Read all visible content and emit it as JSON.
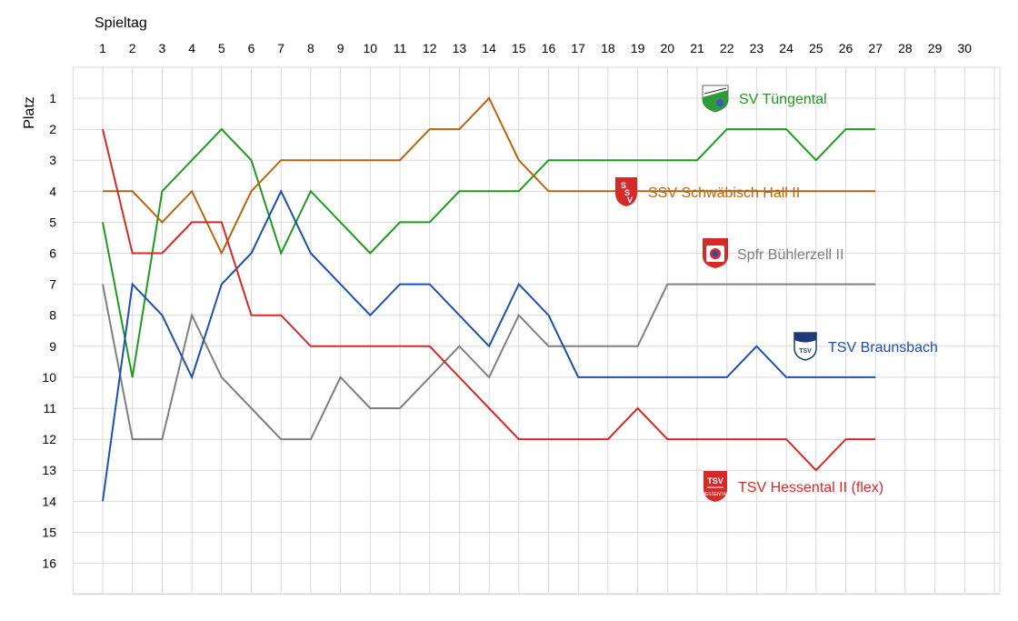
{
  "chart_data": {
    "type": "line",
    "xlabel": "Spieltag",
    "ylabel": "Platz",
    "x_ticks": [
      1,
      2,
      3,
      4,
      5,
      6,
      7,
      8,
      9,
      10,
      11,
      12,
      13,
      14,
      15,
      16,
      17,
      18,
      19,
      20,
      21,
      22,
      23,
      24,
      25,
      26,
      27,
      28,
      29,
      30
    ],
    "y_ticks": [
      1,
      2,
      3,
      4,
      5,
      6,
      7,
      8,
      9,
      10,
      11,
      12,
      13,
      14,
      15,
      16
    ],
    "xlim": [
      1,
      30
    ],
    "ylim": [
      16,
      1
    ],
    "y_inverted": true,
    "grid": true,
    "x_axis_position": "top",
    "series": [
      {
        "name": "SV Tüngental",
        "color": "#1f9a1f",
        "logo": "sv-tuengental-crest-icon",
        "values": [
          5,
          10,
          4,
          3,
          2,
          3,
          6,
          4,
          5,
          6,
          5,
          5,
          4,
          4,
          4,
          3,
          3,
          3,
          3,
          3,
          3,
          2,
          2,
          2,
          3,
          2,
          2
        ]
      },
      {
        "name": "SSV Schwäbisch Hall II",
        "color": "#b8650f",
        "logo": "ssv-schwaebisch-hall-crest-icon",
        "values": [
          4,
          4,
          5,
          4,
          6,
          4,
          3,
          3,
          3,
          3,
          3,
          2,
          2,
          1,
          3,
          4,
          4,
          4,
          4,
          4,
          4,
          4,
          4,
          4,
          4,
          4,
          4
        ]
      },
      {
        "name": "Spfr Bühlerzell II",
        "color": "#7f7f7f",
        "logo": "spfr-buehlerzell-crest-icon",
        "values": [
          7,
          12,
          12,
          8,
          10,
          11,
          12,
          12,
          10,
          11,
          11,
          10,
          9,
          10,
          8,
          9,
          9,
          9,
          9,
          7,
          7,
          7,
          7,
          7,
          7,
          7,
          7
        ]
      },
      {
        "name": "TSV Braunsbach",
        "color": "#1f4faf",
        "logo": "tsv-braunsbach-crest-icon",
        "values": [
          14,
          7,
          8,
          10,
          7,
          6,
          4,
          6,
          7,
          8,
          7,
          7,
          8,
          9,
          7,
          8,
          10,
          10,
          10,
          10,
          10,
          10,
          9,
          10,
          10,
          10,
          10
        ]
      },
      {
        "name": "TSV Hessental II (flex)",
        "color": "#d42a2a",
        "logo": "tsv-hessental-crest-icon",
        "values": [
          2,
          6,
          6,
          5,
          5,
          8,
          8,
          9,
          9,
          9,
          9,
          9,
          10,
          11,
          12,
          12,
          12,
          12,
          11,
          12,
          12,
          12,
          12,
          12,
          13,
          12,
          12
        ]
      }
    ]
  }
}
